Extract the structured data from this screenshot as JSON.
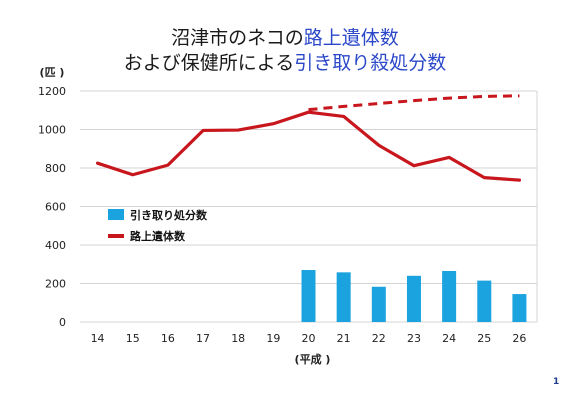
{
  "title": {
    "line1_prefix": "沼津市のネコの",
    "line1_highlight": "路上遺体数",
    "line2_prefix": "および保健所による",
    "line2_highlight": "引き取り殺処分数"
  },
  "page_number": "1",
  "colors": {
    "line": "#c8161d",
    "bar": "#1aa3de",
    "grid": "#d4d4d4",
    "title_highlight": "#2b48c9"
  },
  "chart_data": {
    "type": "bar",
    "categories": [
      "14",
      "15",
      "16",
      "17",
      "18",
      "19",
      "20",
      "21",
      "22",
      "23",
      "24",
      "25",
      "26"
    ],
    "xlabel": "(平成 )",
    "ylabel": "(匹 )",
    "ylim": [
      0,
      1200
    ],
    "yticks": [
      0,
      200,
      400,
      600,
      800,
      1000,
      1200
    ],
    "grid": true,
    "legend_position": "left-middle",
    "series": [
      {
        "name": "引き取り処分数",
        "type": "bar",
        "values": [
          null,
          null,
          null,
          null,
          null,
          null,
          270,
          258,
          183,
          240,
          265,
          215,
          145
        ]
      },
      {
        "name": "路上遺体数",
        "type": "line",
        "values": [
          825,
          765,
          815,
          995,
          997,
          1030,
          1090,
          1068,
          918,
          812,
          855,
          750,
          737
        ]
      },
      {
        "name": "",
        "type": "line-dashed",
        "values": [
          null,
          null,
          null,
          null,
          null,
          null,
          1103,
          1120,
          1135,
          1150,
          1163,
          1172,
          1175
        ]
      }
    ]
  }
}
